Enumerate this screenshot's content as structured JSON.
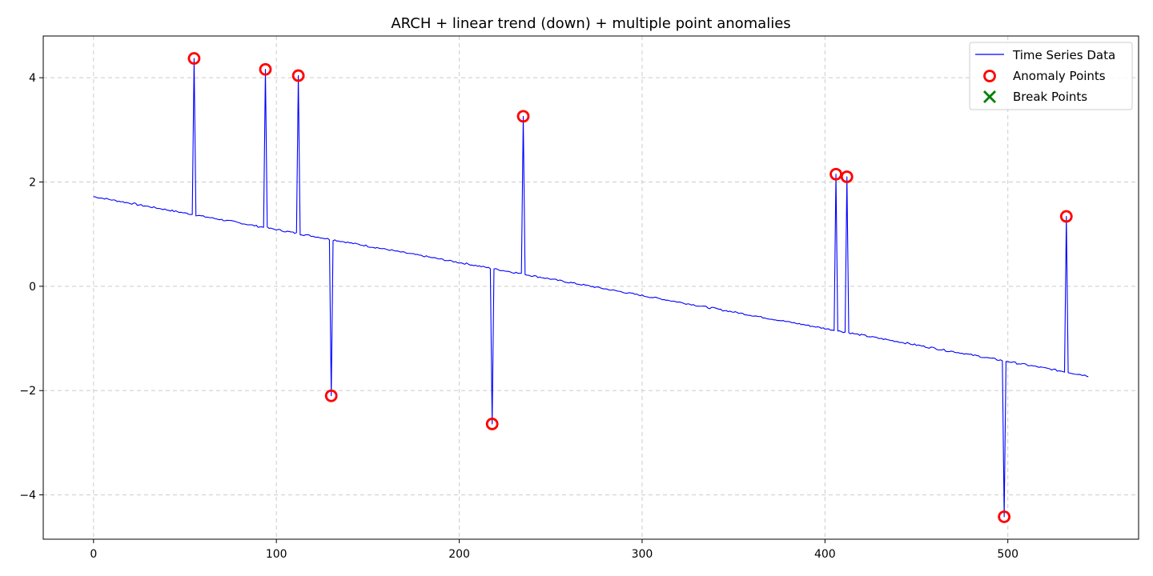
{
  "chart_data": {
    "type": "line",
    "title": "ARCH + linear trend (down) + multiple point anomalies",
    "xlabel": "",
    "ylabel": "",
    "xlim": [
      -27.5,
      571.5
    ],
    "ylim": [
      -4.85,
      4.8
    ],
    "xticks": [
      0,
      100,
      200,
      300,
      400,
      500
    ],
    "yticks": [
      -4,
      -2,
      0,
      2,
      4
    ],
    "grid": true,
    "legend_position": "top-right",
    "n_points": 545,
    "trend": {
      "start": 1.72,
      "end": -1.72
    },
    "series": [
      {
        "name": "Time Series Data",
        "kind": "line",
        "color": "#0000ff"
      },
      {
        "name": "Anomaly Points",
        "kind": "marker-circle",
        "color": "#ff0000",
        "points": [
          {
            "x": 55,
            "y": 4.37
          },
          {
            "x": 94,
            "y": 4.16
          },
          {
            "x": 112,
            "y": 4.04
          },
          {
            "x": 130,
            "y": -2.1
          },
          {
            "x": 218,
            "y": -2.64
          },
          {
            "x": 235,
            "y": 3.26
          },
          {
            "x": 406,
            "y": 2.15
          },
          {
            "x": 412,
            "y": 2.1
          },
          {
            "x": 498,
            "y": -4.42
          },
          {
            "x": 532,
            "y": 1.34
          }
        ]
      },
      {
        "name": "Break Points",
        "kind": "marker-x",
        "color": "#008000",
        "points": []
      }
    ]
  }
}
